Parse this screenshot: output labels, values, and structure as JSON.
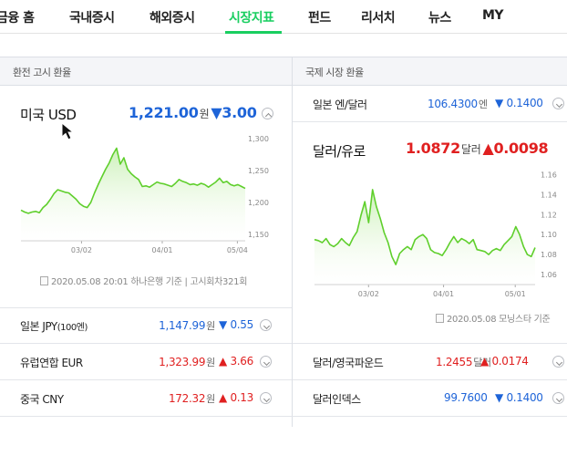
{
  "nav": {
    "tabs": [
      {
        "label": "금융 홈"
      },
      {
        "label": "국내증시"
      },
      {
        "label": "해외증시"
      },
      {
        "label": "시장지표"
      },
      {
        "label": "펀드"
      },
      {
        "label": "리서치"
      },
      {
        "label": "뉴스"
      },
      {
        "label": "MY"
      }
    ],
    "active": "시장지표",
    "accent": "#19ce60"
  },
  "left_panel": {
    "title": "환전 고시 환율",
    "featured": {
      "name": "미국 USD",
      "price": "1,221.00",
      "unit": "원",
      "change": "▼3.00",
      "direction": "down",
      "source": "2020.05.08 20:01 하나은행 기준",
      "round": "고시회차321회"
    },
    "rows": [
      {
        "name": "일본 JPY",
        "sub": "(100엔)",
        "price": "1,147.99",
        "unit": "원",
        "change": "▼ 0.55",
        "direction": "down"
      },
      {
        "name": "유럽연합 EUR",
        "sub": "",
        "price": "1,323.99",
        "unit": "원",
        "change": "▲ 3.66",
        "direction": "up"
      },
      {
        "name": "중국 CNY",
        "sub": "",
        "price": "172.32",
        "unit": "원",
        "change": "▲ 0.13",
        "direction": "up"
      }
    ]
  },
  "right_panel": {
    "title": "국제 시장 환율",
    "top_row": {
      "name": "일본 엔/달러",
      "price": "106.4300",
      "unit": "엔",
      "change": "▼ 0.1400",
      "direction": "down"
    },
    "featured": {
      "name": "달러/유로",
      "price": "1.0872",
      "unit": "달러",
      "change": "▲0.0098",
      "direction": "up",
      "source": "2020.05.08 모닝스타 기준"
    },
    "rows": [
      {
        "name": "달러/영국파운드",
        "price": "1.2455",
        "unit": "달러",
        "change": "▲ 0.0174",
        "direction": "up"
      },
      {
        "name": "달러인덱스",
        "price": "99.7600",
        "unit": "",
        "change": "▼ 0.1400",
        "direction": "down"
      }
    ]
  },
  "colors": {
    "down": "#1e64d8",
    "up": "#e02020",
    "line": "#5fcf2c"
  },
  "chart_data": [
    {
      "type": "area",
      "x_ticks": [
        "03/02",
        "04/01",
        "05/04"
      ],
      "y_ticks": [
        "1,300",
        "1,250",
        "1,200",
        "1,150"
      ],
      "ylim": [
        1140,
        1300
      ],
      "values": [
        1188,
        1185,
        1183,
        1185,
        1186,
        1184,
        1192,
        1197,
        1205,
        1214,
        1220,
        1218,
        1216,
        1215,
        1210,
        1205,
        1198,
        1194,
        1192,
        1200,
        1215,
        1228,
        1240,
        1252,
        1262,
        1275,
        1285,
        1260,
        1270,
        1252,
        1245,
        1240,
        1236,
        1225,
        1226,
        1224,
        1228,
        1232,
        1230,
        1229,
        1227,
        1225,
        1230,
        1236,
        1233,
        1231,
        1228,
        1229,
        1227,
        1230,
        1228,
        1224,
        1228,
        1232,
        1238,
        1231,
        1233,
        1228,
        1226,
        1228,
        1225,
        1222
      ]
    },
    {
      "type": "area",
      "x_ticks": [
        "03/02",
        "04/01",
        "05/01"
      ],
      "y_ticks": [
        "1.16",
        "1.14",
        "1.12",
        "1.10",
        "1.08",
        "1.06"
      ],
      "ylim": [
        1.05,
        1.165
      ],
      "values": [
        1.095,
        1.094,
        1.092,
        1.096,
        1.09,
        1.088,
        1.091,
        1.096,
        1.092,
        1.089,
        1.097,
        1.103,
        1.119,
        1.133,
        1.112,
        1.145,
        1.128,
        1.116,
        1.102,
        1.092,
        1.078,
        1.07,
        1.081,
        1.085,
        1.088,
        1.085,
        1.095,
        1.098,
        1.1,
        1.096,
        1.085,
        1.082,
        1.081,
        1.079,
        1.085,
        1.092,
        1.098,
        1.092,
        1.096,
        1.094,
        1.091,
        1.095,
        1.085,
        1.084,
        1.083,
        1.08,
        1.084,
        1.086,
        1.084,
        1.09,
        1.094,
        1.098,
        1.108,
        1.1,
        1.088,
        1.08,
        1.078,
        1.087
      ]
    }
  ]
}
